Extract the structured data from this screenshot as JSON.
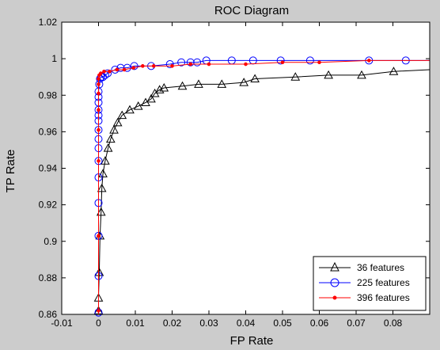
{
  "chart_data": {
    "type": "line",
    "title": "ROC Diagram",
    "xlabel": "FP Rate",
    "ylabel": "TP Rate",
    "xlim": [
      -0.01,
      0.09
    ],
    "ylim": [
      0.86,
      1.02
    ],
    "xticks": [
      -0.01,
      0,
      0.01,
      0.02,
      0.03,
      0.04,
      0.05,
      0.06,
      0.07,
      0.08
    ],
    "xtick_labels": [
      "-0.01",
      "0",
      "0.01",
      "0.02",
      "0.03",
      "0.04",
      "0.05",
      "0.06",
      "0.07",
      "0.08"
    ],
    "yticks": [
      0.86,
      0.88,
      0.9,
      0.92,
      0.94,
      0.96,
      0.98,
      1,
      1.02
    ],
    "ytick_labels": [
      "0.86",
      "0.88",
      "0.9",
      "0.92",
      "0.94",
      "0.96",
      "0.98",
      "1",
      "1.02"
    ],
    "grid": false,
    "legend_position": "bottom-right",
    "series": [
      {
        "name": "36 features",
        "color": "#000000",
        "marker": "triangle",
        "line": [
          [
            0,
            0.86
          ],
          [
            0,
            0.87
          ],
          [
            0.0002,
            0.883
          ],
          [
            0.0004,
            0.903
          ],
          [
            0.0007,
            0.916
          ],
          [
            0.0009,
            0.929
          ],
          [
            0.0012,
            0.937
          ],
          [
            0.0018,
            0.944
          ],
          [
            0.0026,
            0.951
          ],
          [
            0.0033,
            0.956
          ],
          [
            0.0042,
            0.961
          ],
          [
            0.0052,
            0.965
          ],
          [
            0.0064,
            0.969
          ],
          [
            0.0085,
            0.972
          ],
          [
            0.0108,
            0.974
          ],
          [
            0.0128,
            0.976
          ],
          [
            0.0143,
            0.978
          ],
          [
            0.0153,
            0.981
          ],
          [
            0.0166,
            0.983
          ],
          [
            0.0178,
            0.984
          ],
          [
            0.0228,
            0.985
          ],
          [
            0.0272,
            0.986
          ],
          [
            0.0335,
            0.986
          ],
          [
            0.0395,
            0.987
          ],
          [
            0.0425,
            0.989
          ],
          [
            0.0535,
            0.99
          ],
          [
            0.0625,
            0.991
          ],
          [
            0.0715,
            0.991
          ],
          [
            0.0802,
            0.993
          ],
          [
            0.09,
            0.994
          ]
        ],
        "markers": [
          [
            0,
            0.862
          ],
          [
            0,
            0.869
          ],
          [
            0.0002,
            0.883
          ],
          [
            0.0004,
            0.903
          ],
          [
            0.0007,
            0.916
          ],
          [
            0.0009,
            0.929
          ],
          [
            0.0012,
            0.937
          ],
          [
            0.0018,
            0.944
          ],
          [
            0.0026,
            0.951
          ],
          [
            0.0033,
            0.956
          ],
          [
            0.0042,
            0.961
          ],
          [
            0.0052,
            0.965
          ],
          [
            0.0064,
            0.969
          ],
          [
            0.0085,
            0.972
          ],
          [
            0.0108,
            0.974
          ],
          [
            0.0128,
            0.976
          ],
          [
            0.0143,
            0.978
          ],
          [
            0.0153,
            0.981
          ],
          [
            0.0166,
            0.983
          ],
          [
            0.0178,
            0.984
          ],
          [
            0.0228,
            0.985
          ],
          [
            0.0272,
            0.986
          ],
          [
            0.0335,
            0.986
          ],
          [
            0.0395,
            0.987
          ],
          [
            0.0425,
            0.989
          ],
          [
            0.0535,
            0.99
          ],
          [
            0.0625,
            0.991
          ],
          [
            0.0715,
            0.991
          ],
          [
            0.0802,
            0.993
          ]
        ]
      },
      {
        "name": "225 features",
        "color": "#0000ff",
        "marker": "circle",
        "line": [
          [
            0,
            0.86
          ],
          [
            0,
            0.881
          ],
          [
            0,
            0.903
          ],
          [
            0,
            0.921
          ],
          [
            0,
            0.935
          ],
          [
            0,
            0.944
          ],
          [
            0,
            0.951
          ],
          [
            0,
            0.956
          ],
          [
            0,
            0.961
          ],
          [
            0,
            0.966
          ],
          [
            0,
            0.969
          ],
          [
            0,
            0.972
          ],
          [
            0,
            0.976
          ],
          [
            0,
            0.979
          ],
          [
            0,
            0.982
          ],
          [
            0.0002,
            0.986
          ],
          [
            0.0004,
            0.989
          ],
          [
            0.0007,
            0.99
          ],
          [
            0.0012,
            0.99
          ],
          [
            0.0018,
            0.991
          ],
          [
            0.0025,
            0.992
          ],
          [
            0.0035,
            0.993
          ],
          [
            0.0045,
            0.994
          ],
          [
            0.006,
            0.995
          ],
          [
            0.0078,
            0.995
          ],
          [
            0.0097,
            0.996
          ],
          [
            0.0143,
            0.996
          ],
          [
            0.0194,
            0.997
          ],
          [
            0.0225,
            0.998
          ],
          [
            0.025,
            0.998
          ],
          [
            0.0268,
            0.998
          ],
          [
            0.0293,
            0.999
          ],
          [
            0.0362,
            0.999
          ],
          [
            0.042,
            0.999
          ],
          [
            0.0495,
            0.999
          ],
          [
            0.0575,
            0.999
          ],
          [
            0.0735,
            0.999
          ],
          [
            0.0835,
            0.999
          ],
          [
            0.09,
            0.999
          ]
        ],
        "markers": [
          [
            0,
            0.861
          ],
          [
            0,
            0.881
          ],
          [
            0,
            0.903
          ],
          [
            0,
            0.921
          ],
          [
            0,
            0.935
          ],
          [
            0,
            0.944
          ],
          [
            0,
            0.951
          ],
          [
            0,
            0.956
          ],
          [
            0,
            0.961
          ],
          [
            0,
            0.966
          ],
          [
            0,
            0.969
          ],
          [
            0,
            0.972
          ],
          [
            0,
            0.976
          ],
          [
            0,
            0.979
          ],
          [
            0,
            0.982
          ],
          [
            0.0002,
            0.986
          ],
          [
            0.0004,
            0.989
          ],
          [
            0.0007,
            0.99
          ],
          [
            0.0012,
            0.99
          ],
          [
            0.0018,
            0.991
          ],
          [
            0.0025,
            0.992
          ],
          [
            0.0045,
            0.994
          ],
          [
            0.006,
            0.995
          ],
          [
            0.0078,
            0.995
          ],
          [
            0.0097,
            0.996
          ],
          [
            0.0143,
            0.996
          ],
          [
            0.0194,
            0.997
          ],
          [
            0.0225,
            0.998
          ],
          [
            0.025,
            0.998
          ],
          [
            0.0268,
            0.998
          ],
          [
            0.0293,
            0.999
          ],
          [
            0.0362,
            0.999
          ],
          [
            0.042,
            0.999
          ],
          [
            0.0495,
            0.999
          ],
          [
            0.0575,
            0.999
          ],
          [
            0.0735,
            0.999
          ],
          [
            0.0835,
            0.999
          ]
        ]
      },
      {
        "name": "396 features",
        "color": "#ff0000",
        "marker": "dot",
        "line": [
          [
            0,
            0.86
          ],
          [
            0,
            0.903
          ],
          [
            0,
            0.944
          ],
          [
            0,
            0.961
          ],
          [
            0,
            0.972
          ],
          [
            0,
            0.981
          ],
          [
            0,
            0.986
          ],
          [
            0,
            0.989
          ],
          [
            0.0002,
            0.991
          ],
          [
            0.0006,
            0.992
          ],
          [
            0.0015,
            0.993
          ],
          [
            0.003,
            0.993
          ],
          [
            0.005,
            0.994
          ],
          [
            0.007,
            0.994
          ],
          [
            0.0095,
            0.995
          ],
          [
            0.012,
            0.996
          ],
          [
            0.015,
            0.996
          ],
          [
            0.02,
            0.996
          ],
          [
            0.025,
            0.997
          ],
          [
            0.03,
            0.997
          ],
          [
            0.04,
            0.997
          ],
          [
            0.05,
            0.998
          ],
          [
            0.06,
            0.998
          ],
          [
            0.0735,
            0.999
          ],
          [
            0.09,
            0.999
          ]
        ],
        "markers": [
          [
            0,
            0.862
          ],
          [
            0,
            0.903
          ],
          [
            0,
            0.944
          ],
          [
            0,
            0.961
          ],
          [
            0,
            0.972
          ],
          [
            0,
            0.981
          ],
          [
            0,
            0.986
          ],
          [
            0,
            0.989
          ],
          [
            0.0002,
            0.991
          ],
          [
            0.0006,
            0.992
          ],
          [
            0.0015,
            0.993
          ],
          [
            0.003,
            0.993
          ],
          [
            0.005,
            0.994
          ],
          [
            0.007,
            0.994
          ],
          [
            0.0095,
            0.995
          ],
          [
            0.012,
            0.996
          ],
          [
            0.015,
            0.996
          ],
          [
            0.02,
            0.996
          ],
          [
            0.025,
            0.997
          ],
          [
            0.03,
            0.997
          ],
          [
            0.04,
            0.997
          ],
          [
            0.05,
            0.998
          ],
          [
            0.06,
            0.998
          ],
          [
            0.0735,
            0.999
          ]
        ]
      }
    ]
  }
}
